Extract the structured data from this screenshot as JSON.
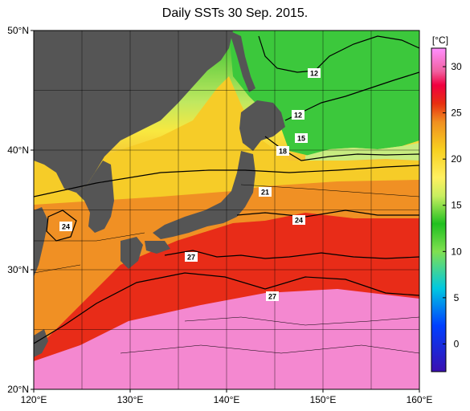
{
  "title": "Daily SSTs 30 Sep. 2015.",
  "colorbar": {
    "unit": "[°C]",
    "min": -3,
    "max": 32,
    "ticks": [
      "30",
      "25",
      "20",
      "15",
      "10",
      "5",
      "0"
    ],
    "tick_values": [
      30,
      25,
      20,
      15,
      10,
      5,
      0
    ],
    "colors": [
      "#3a10b0",
      "#0040ff",
      "#00c8e0",
      "#80e050",
      "#20c020",
      "#c8ee60",
      "#fff060",
      "#f8d020",
      "#f09020",
      "#e83010",
      "#f00040",
      "#f060a0",
      "#ff90ff"
    ],
    "color_stops": [
      -3,
      2,
      6,
      10,
      13,
      16,
      18,
      21,
      24,
      26,
      28,
      29.5,
      32
    ]
  },
  "map": {
    "lon_range": [
      120,
      160
    ],
    "lat_range": [
      20,
      50
    ],
    "lon_labels": [
      "120°E",
      "130°E",
      "140°E",
      "150°E",
      "160°E"
    ],
    "lat_labels": [
      "50°N",
      "40°N",
      "30°N",
      "20°N"
    ],
    "land_color": "#555555",
    "contour_labels": [
      "12",
      "12",
      "15",
      "18",
      "21",
      "24",
      "24",
      "27",
      "27"
    ]
  }
}
